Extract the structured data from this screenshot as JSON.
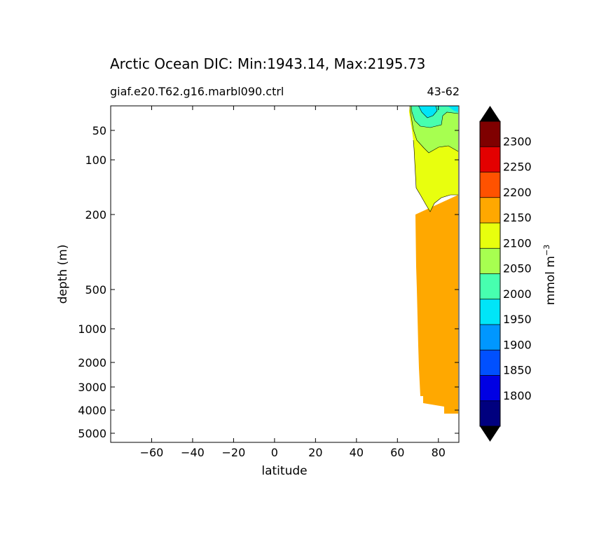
{
  "chart_data": {
    "type": "heatmap",
    "title": "Arctic Ocean DIC: Min:1943.14, Max:2195.73",
    "subtitle_left": "giaf.e20.T62.g16.marbl090.ctrl",
    "subtitle_right": "43-62",
    "xlabel": "latitude",
    "ylabel": "depth (m)",
    "xlim": [
      -80,
      90
    ],
    "x_ticks": [
      -60,
      -40,
      -20,
      0,
      20,
      40,
      60,
      80
    ],
    "x_tick_labels": [
      "−60",
      "−40",
      "−20",
      "0",
      "20",
      "40",
      "60",
      "80"
    ],
    "y_scale": "sqrt-depth (inverted)",
    "ylim": [
      5500,
      10
    ],
    "y_ticks": [
      50,
      100,
      200,
      500,
      1000,
      2000,
      3000,
      4000,
      5000
    ],
    "y_tick_labels": [
      "50",
      "100",
      "200",
      "500",
      "1000",
      "2000",
      "3000",
      "4000",
      "5000"
    ],
    "colorbar": {
      "label": "mmol m",
      "label_superscript": "−3",
      "levels": [
        1800,
        1850,
        1900,
        1950,
        2000,
        2050,
        2100,
        2150,
        2200,
        2250,
        2300
      ],
      "tick_labels": [
        "1800",
        "1850",
        "1900",
        "1950",
        "2000",
        "2050",
        "2100",
        "2150",
        "2200",
        "2250",
        "2300"
      ],
      "colors": [
        "#00007f",
        "#0000e3",
        "#0050ff",
        "#0097ff",
        "#00e5f8",
        "#47ffaf",
        "#a7ff50",
        "#e8ff0e",
        "#ffa800",
        "#ff5200",
        "#e30000",
        "#7f0000"
      ],
      "extend": "both",
      "extend_color": "#000000"
    },
    "bands": [
      {
        "range": "1950-2000",
        "color": "#00e5f8"
      },
      {
        "range": "2000-2050",
        "color": "#47ffaf"
      },
      {
        "range": "2050-2100",
        "color": "#a7ff50"
      },
      {
        "range": "2100-2150",
        "color": "#e8ff0e"
      },
      {
        "range": "2150-2200",
        "color": "#ffa800"
      }
    ]
  }
}
